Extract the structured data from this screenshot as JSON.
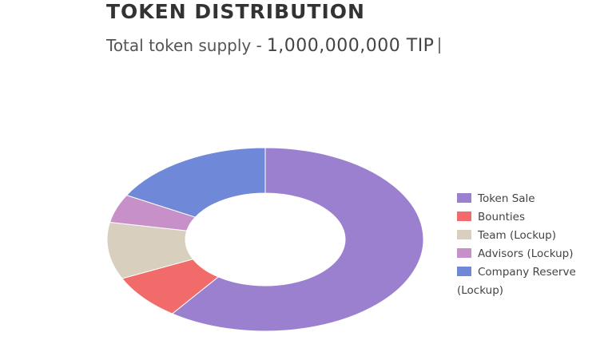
{
  "chart_data": {
    "type": "doughnut",
    "title": "TOKEN DISTRIBUTION",
    "subtitle": {
      "label": "Total token supply -",
      "supply": "1,000,000,000 TIP"
    },
    "categories": [
      "Token Sale",
      "Bounties",
      "Team (Lockup)",
      "Advisors (Lockup)",
      "Company Reserve (Lockup)"
    ],
    "values": [
      60,
      8,
      10,
      5,
      17
    ],
    "colors": [
      "#9b80cf",
      "#f26b6b",
      "#d9cfbf",
      "#c890c9",
      "#6f88d8"
    ],
    "legend": "right"
  }
}
